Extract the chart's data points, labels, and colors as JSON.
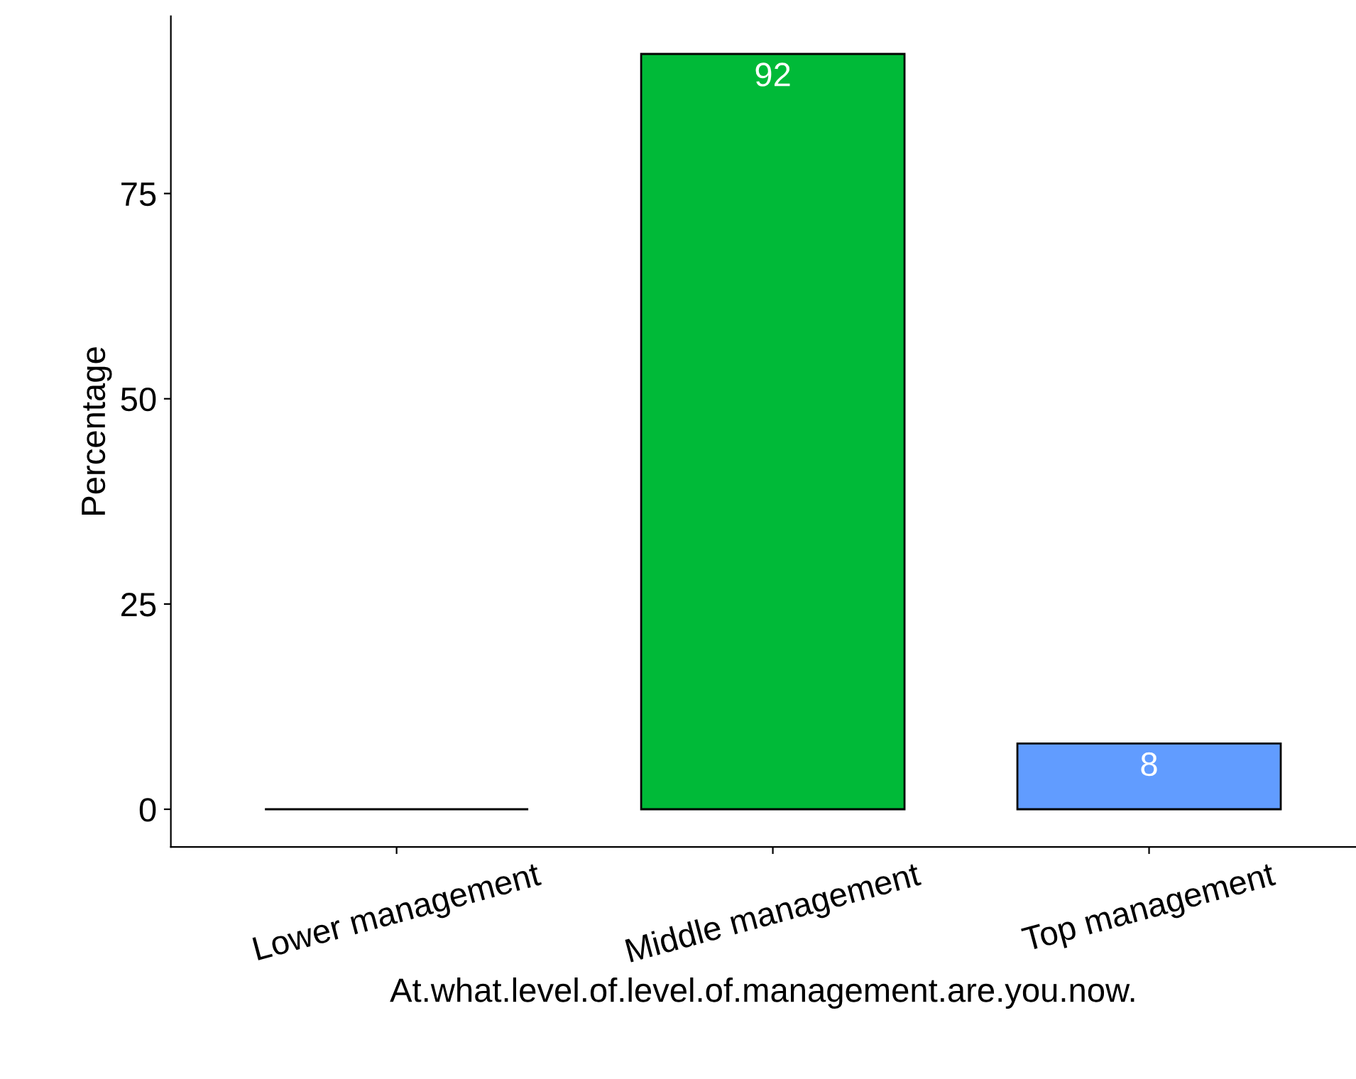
{
  "chart_data": {
    "type": "bar",
    "xlabel": "At.what.level.of.level.of.management.are.you.now.",
    "ylabel": "Percentage",
    "categories": [
      "Lower management",
      "Middle management",
      "Top management"
    ],
    "values": [
      0,
      92,
      8
    ],
    "colors": [
      "#000000",
      "#00ba38",
      "#619cff"
    ],
    "value_labels": [
      null,
      "92",
      "8"
    ],
    "ylim": [
      -4.6,
      96.6
    ],
    "yticks": [
      0,
      25,
      50,
      75
    ],
    "grid": false,
    "legend": false
  }
}
